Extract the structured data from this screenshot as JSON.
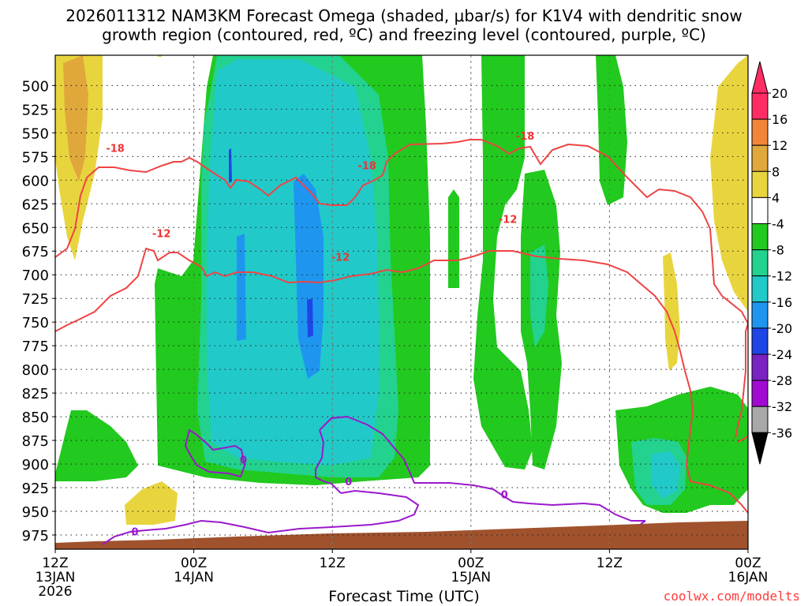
{
  "title": {
    "line1": "2026011312 NAM3KM Forecast Omega (shaded, μbar/s) for K1V4 with dendritic snow",
    "line2": "growth region (contoured, red, ºC) and freezing level (contoured, purple, ºC)"
  },
  "credit": "coolwx.com/modelts",
  "chart_data": {
    "type": "heatmap",
    "xlabel": "Forecast Time (UTC)",
    "x_ticks": [
      {
        "hours": 0,
        "label1": "12Z",
        "label2": "13JAN",
        "label3": "2026"
      },
      {
        "hours": 12,
        "label1": "00Z",
        "label2": "14JAN"
      },
      {
        "hours": 24,
        "label1": "12Z"
      },
      {
        "hours": 36,
        "label1": "00Z",
        "label2": "15JAN"
      },
      {
        "hours": 48,
        "label1": "12Z"
      },
      {
        "hours": 60,
        "label1": "00Z",
        "label2": "16JAN"
      }
    ],
    "xlim_hours": [
      0,
      60
    ],
    "ylim_hPa": [
      468,
      990
    ],
    "y_ticks": [
      500,
      525,
      550,
      575,
      600,
      625,
      650,
      675,
      700,
      725,
      750,
      775,
      800,
      825,
      850,
      875,
      900,
      925,
      950,
      975
    ],
    "colorbar": {
      "labels": [
        "20",
        "16",
        "12",
        "8",
        "4",
        "-4",
        "-8",
        "-12",
        "-16",
        "-20",
        "-24",
        "-28",
        "-32",
        "-36"
      ],
      "colors": [
        "#ff2d64",
        "#f2853a",
        "#e0a83b",
        "#e8d53e",
        "#ffffff",
        "#22c91e",
        "#22d28e",
        "#22c9c9",
        "#1e96f0",
        "#1e46e6",
        "#7b22c2",
        "#a20ad2",
        "#a8a8a8",
        "#000000"
      ],
      "overflow_top_color": "#ff2d64",
      "underflow_bottom_color": "#000000"
    },
    "contour_labels": [
      {
        "text": "-18",
        "color": "#ee3333",
        "hours": 5.2,
        "hPa": 567
      },
      {
        "text": "-18",
        "color": "#ee3333",
        "hours": 27,
        "hPa": 585
      },
      {
        "text": "-18",
        "color": "#ee3333",
        "hours": 40.7,
        "hPa": 554
      },
      {
        "text": "-12",
        "color": "#ee3333",
        "hours": 9.2,
        "hPa": 657
      },
      {
        "text": "-12",
        "color": "#ee3333",
        "hours": 24.7,
        "hPa": 682
      },
      {
        "text": "-12",
        "color": "#ee3333",
        "hours": 39.2,
        "hPa": 642
      },
      {
        "text": "0",
        "color": "#9a18cc",
        "hours": 16.3,
        "hPa": 896
      },
      {
        "text": "0",
        "color": "#9a18cc",
        "hours": 25.4,
        "hPa": 919
      },
      {
        "text": "0",
        "color": "#9a18cc",
        "hours": 38.9,
        "hPa": 933
      },
      {
        "text": "0",
        "color": "#9a18cc",
        "hours": 6.9,
        "hPa": 972
      }
    ]
  }
}
